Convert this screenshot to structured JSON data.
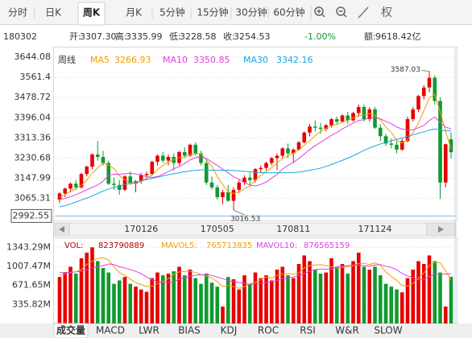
{
  "toolbar": {
    "tabs": [
      {
        "label": "分时",
        "selected": false
      },
      {
        "label": "日K",
        "selected": false
      },
      {
        "label": "周K",
        "selected": true
      },
      {
        "label": "月K",
        "selected": false
      },
      {
        "label": "5分钟",
        "selected": false
      },
      {
        "label": "15分钟",
        "selected": false
      },
      {
        "label": "30分钟",
        "selected": false
      },
      {
        "label": "60分钟",
        "selected": false
      }
    ],
    "adjust": "权"
  },
  "quote": {
    "date": "180302",
    "fields": [
      {
        "label": "开:",
        "value": "3307.30"
      },
      {
        "label": "高:",
        "value": "3335.99"
      },
      {
        "label": "低:",
        "value": "3228.58"
      },
      {
        "label": "收:",
        "value": "3254.53"
      }
    ],
    "change": "-1.00%",
    "amount_label": "额:",
    "amount": "9618.42亿"
  },
  "chart_data": [
    {
      "type": "candlestick",
      "period_label": "周线",
      "categories": [
        null,
        null,
        null,
        null,
        null,
        null,
        null,
        null,
        null,
        null,
        null,
        null,
        null,
        null,
        null,
        "170126",
        null,
        null,
        null,
        null,
        null,
        null,
        null,
        null,
        null,
        null,
        null,
        null,
        null,
        "170505",
        null,
        null,
        null,
        null,
        null,
        null,
        null,
        null,
        null,
        null,
        null,
        null,
        null,
        "170811",
        null,
        null,
        null,
        null,
        null,
        null,
        null,
        null,
        null,
        null,
        null,
        null,
        null,
        null,
        "171124",
        null,
        null,
        null,
        null,
        null,
        null,
        null,
        null,
        null,
        null,
        null,
        null,
        null,
        null
      ],
      "open": [
        3060,
        3085,
        3105,
        3125,
        3110,
        3165,
        3195,
        3245,
        3235,
        3210,
        3125,
        3120,
        3100,
        3155,
        3125,
        3135,
        3160,
        3165,
        3215,
        3240,
        3220,
        3235,
        3210,
        3255,
        3240,
        3285,
        3250,
        3210,
        3130,
        3110,
        3070,
        3090,
        3055,
        3100,
        3130,
        3150,
        3140,
        3185,
        3190,
        3210,
        3230,
        3240,
        3270,
        3250,
        3265,
        3295,
        3335,
        3360,
        3355,
        3350,
        3365,
        3390,
        3380,
        3405,
        3385,
        3415,
        3440,
        3390,
        3430,
        3355,
        3320,
        3290,
        3285,
        3265,
        3300,
        3390,
        3430,
        3485,
        3520,
        3560,
        3465,
        3130,
        3307.3
      ],
      "high": [
        3090,
        3110,
        3130,
        3140,
        3170,
        3200,
        3250,
        3300,
        3260,
        3220,
        3150,
        3140,
        3160,
        3175,
        3140,
        3170,
        3175,
        3220,
        3245,
        3255,
        3245,
        3250,
        3260,
        3275,
        3290,
        3295,
        3260,
        3220,
        3155,
        3120,
        3100,
        3120,
        3110,
        3140,
        3160,
        3170,
        3190,
        3200,
        3215,
        3235,
        3250,
        3275,
        3290,
        3270,
        3300,
        3340,
        3370,
        3385,
        3375,
        3370,
        3395,
        3400,
        3410,
        3420,
        3420,
        3450,
        3450,
        3440,
        3440,
        3370,
        3330,
        3310,
        3300,
        3310,
        3400,
        3440,
        3490,
        3530,
        3587.03,
        3570,
        3480,
        3290,
        3335.99
      ],
      "low": [
        3045,
        3070,
        3090,
        3100,
        3105,
        3155,
        3185,
        3220,
        3200,
        3120,
        3100,
        3080,
        3095,
        3120,
        3090,
        3125,
        3140,
        3160,
        3200,
        3210,
        3200,
        3180,
        3200,
        3230,
        3235,
        3240,
        3200,
        3120,
        3100,
        3060,
        3040,
        3050,
        3016.53,
        3090,
        3120,
        3120,
        3130,
        3170,
        3180,
        3200,
        3180,
        3230,
        3230,
        3210,
        3260,
        3290,
        3320,
        3340,
        3330,
        3340,
        3355,
        3370,
        3375,
        3370,
        3380,
        3400,
        3380,
        3380,
        3350,
        3300,
        3280,
        3270,
        3250,
        3260,
        3295,
        3380,
        3420,
        3470,
        3500,
        3450,
        3062,
        3110,
        3228.58
      ],
      "close": [
        3085,
        3105,
        3125,
        3110,
        3165,
        3195,
        3245,
        3235,
        3210,
        3125,
        3120,
        3100,
        3155,
        3125,
        3135,
        3160,
        3165,
        3215,
        3240,
        3220,
        3235,
        3210,
        3255,
        3240,
        3285,
        3250,
        3210,
        3130,
        3110,
        3070,
        3090,
        3055,
        3100,
        3130,
        3150,
        3140,
        3185,
        3190,
        3210,
        3230,
        3240,
        3270,
        3250,
        3265,
        3295,
        3335,
        3360,
        3355,
        3350,
        3365,
        3390,
        3380,
        3405,
        3385,
        3415,
        3440,
        3390,
        3430,
        3355,
        3320,
        3290,
        3285,
        3265,
        3300,
        3390,
        3430,
        3485,
        3520,
        3560,
        3465,
        3130,
        3287,
        3254.53
      ],
      "up_color": "#e60000",
      "down_color": "#109a2e",
      "series": [
        {
          "name": "MA5",
          "color": "#f0a000",
          "values": [
            3070,
            3080,
            3095,
            3105,
            3118,
            3140,
            3168,
            3190,
            3210,
            3202,
            3187,
            3158,
            3142,
            3125,
            3127,
            3135,
            3148,
            3160,
            3183,
            3200,
            3215,
            3224,
            3232,
            3232,
            3245,
            3248,
            3248,
            3223,
            3197,
            3154,
            3122,
            3091,
            3085,
            3089,
            3105,
            3115,
            3141,
            3159,
            3175,
            3191,
            3211,
            3228,
            3240,
            3251,
            3264,
            3283,
            3301,
            3322,
            3339,
            3353,
            3364,
            3368,
            3378,
            3385,
            3395,
            3405,
            3407,
            3412,
            3406,
            3387,
            3357,
            3336,
            3303,
            3292,
            3306,
            3334,
            3374,
            3425,
            3477,
            3492,
            3420,
            3340,
            3266.93
          ]
        },
        {
          "name": "MA10",
          "color": "#e040e0",
          "values": [
            3060,
            3065,
            3072,
            3080,
            3090,
            3100,
            3110,
            3120,
            3135,
            3160,
            3164,
            3163,
            3166,
            3168,
            3165,
            3161,
            3153,
            3151,
            3154,
            3164,
            3175,
            3186,
            3196,
            3208,
            3223,
            3232,
            3236,
            3228,
            3215,
            3200,
            3185,
            3170,
            3154,
            3143,
            3130,
            3119,
            3116,
            3122,
            3132,
            3148,
            3163,
            3185,
            3200,
            3213,
            3228,
            3247,
            3265,
            3281,
            3295,
            3309,
            3324,
            3335,
            3350,
            3362,
            3374,
            3385,
            3388,
            3395,
            3396,
            3391,
            3381,
            3372,
            3358,
            3349,
            3347,
            3346,
            3355,
            3364,
            3385,
            3399,
            3377,
            3357,
            3350.85
          ]
        },
        {
          "name": "MA30",
          "color": "#1aa6e0",
          "values": [
            3030,
            3035,
            3042,
            3050,
            3058,
            3066,
            3075,
            3085,
            3095,
            3103,
            3110,
            3116,
            3122,
            3127,
            3132,
            3137,
            3142,
            3147,
            3152,
            3157,
            3162,
            3166,
            3170,
            3174,
            3178,
            3180,
            3182,
            3182,
            3181,
            3180,
            3181,
            3180,
            3179,
            3178,
            3176,
            3174,
            3172,
            3171,
            3170,
            3170,
            3170,
            3170,
            3170,
            3171,
            3173,
            3176,
            3180,
            3184,
            3189,
            3196,
            3204,
            3212,
            3221,
            3230,
            3240,
            3251,
            3262,
            3272,
            3280,
            3288,
            3295,
            3301,
            3307,
            3313,
            3320,
            3326,
            3332,
            3338,
            3345,
            3350,
            3345,
            3343,
            3342.16
          ]
        }
      ],
      "ylim": [
        2974,
        3681
      ],
      "yticks": [
        3644.08,
        3561.4,
        3478.72,
        3396.04,
        3313.36,
        3230.68,
        3147.99,
        3065.31
      ],
      "cursor_price": 2992.55,
      "grid": true
    },
    {
      "type": "bar",
      "series": [
        {
          "name": "VOL:",
          "color": "#b00000",
          "values": [
            820000000.0,
            900000000.0,
            1000000000.0,
            880000000.0,
            1150000000.0,
            1250000000.0,
            1343000000.0,
            1100000000.0,
            980000000.0,
            900000000.0,
            700000000.0,
            760000000.0,
            820000000.0,
            700000000.0,
            650000000.0,
            600000000.0,
            560000000.0,
            800000000.0,
            900000000.0,
            850000000.0,
            880000000.0,
            920000000.0,
            1000000000.0,
            850000000.0,
            950000000.0,
            800000000.0,
            700000000.0,
            880000000.0,
            720000000.0,
            650000000.0,
            300000000.0,
            820000000.0,
            780000000.0,
            600000000.0,
            850000000.0,
            700000000.0,
            900000000.0,
            800000000.0,
            850000000.0,
            760000000.0,
            950000000.0,
            1000000000.0,
            850000000.0,
            800000000.0,
            1050000000.0,
            1200000000.0,
            1100000000.0,
            950000000.0,
            880000000.0,
            900000000.0,
            1150000000.0,
            1000000000.0,
            1050000000.0,
            880000000.0,
            1100000000.0,
            1250000000.0,
            1000000000.0,
            950000000.0,
            1000000000.0,
            850000000.0,
            700000000.0,
            650000000.0,
            600000000.0,
            550000000.0,
            800000000.0,
            950000000.0,
            1100000000.0,
            1050000000.0,
            1200000000.0,
            1100000000.0,
            900000000.0,
            300000000.0,
            823790889
          ]
        },
        {
          "name": "MAVOL5:",
          "color": "#f0a000",
          "values": [
            850000000.0,
            870000000.0,
            900000000.0,
            910000000.0,
            950000000.0,
            1040000000.0,
            1100000000.0,
            1150000000.0,
            1160000000.0,
            1120000000.0,
            1000000000.0,
            900000000.0,
            850000000.0,
            780000000.0,
            720000000.0,
            690000000.0,
            650000000.0,
            660000000.0,
            700000000.0,
            740000000.0,
            790000000.0,
            870000000.0,
            910000000.0,
            920000000.0,
            920000000.0,
            900000000.0,
            860000000.0,
            840000000.0,
            800000000.0,
            740000000.0,
            650000000.0,
            670000000.0,
            650000000.0,
            620000000.0,
            650000000.0,
            700000000.0,
            730000000.0,
            770000000.0,
            820000000.0,
            800000000.0,
            850000000.0,
            870000000.0,
            880000000.0,
            870000000.0,
            890000000.0,
            980000000.0,
            1020000000.0,
            1030000000.0,
            1040000000.0,
            1020000000.0,
            1000000000.0,
            980000000.0,
            990000000.0,
            1000000000.0,
            1020000000.0,
            1060000000.0,
            1060000000.0,
            1040000000.0,
            1070000000.0,
            1030000000.0,
            910000000.0,
            830000000.0,
            760000000.0,
            670000000.0,
            660000000.0,
            710000000.0,
            800000000.0,
            890000000.0,
            1020000000.0,
            1080000000.0,
            1070000000.0,
            930000000.0,
            765713835
          ]
        },
        {
          "name": "MAVOL10:",
          "color": "#e040e0",
          "values": [
            900000000.0,
            900000000.0,
            905000000.0,
            910000000.0,
            920000000.0,
            950000000.0,
            980000000.0,
            1000000000.0,
            1020000000.0,
            1050000000.0,
            1040000000.0,
            1000000000.0,
            980000000.0,
            950000000.0,
            920000000.0,
            880000000.0,
            820000000.0,
            770000000.0,
            740000000.0,
            730000000.0,
            720000000.0,
            740000000.0,
            780000000.0,
            810000000.0,
            830000000.0,
            850000000.0,
            860000000.0,
            860000000.0,
            850000000.0,
            820000000.0,
            790000000.0,
            760000000.0,
            740000000.0,
            720000000.0,
            710000000.0,
            690000000.0,
            700000000.0,
            710000000.0,
            720000000.0,
            740000000.0,
            760000000.0,
            790000000.0,
            800000000.0,
            820000000.0,
            840000000.0,
            880000000.0,
            920000000.0,
            950000000.0,
            960000000.0,
            960000000.0,
            960000000.0,
            1000000000.0,
            1010000000.0,
            1020000000.0,
            1030000000.0,
            1030000000.0,
            1020000000.0,
            1010000000.0,
            1030000000.0,
            1040000000.0,
            1010000000.0,
            990000000.0,
            950000000.0,
            880000000.0,
            840000000.0,
            810000000.0,
            770000000.0,
            780000000.0,
            830000000.0,
            870000000.0,
            880000000.0,
            870000000.0,
            876565159
          ]
        }
      ],
      "ylim": [
        0,
        1504000000
      ],
      "yticks": [
        {
          "value": 1343290000,
          "label": "1343.29M"
        },
        {
          "value": 1007470000,
          "label": "1007.47M"
        },
        {
          "value": 671650000,
          "label": "671.65M"
        },
        {
          "value": 335820000,
          "label": "335.82M"
        }
      ],
      "grid": true
    }
  ],
  "indicator_tabs": [
    {
      "label": "成交量",
      "selected": true
    },
    {
      "label": "MACD",
      "selected": false
    },
    {
      "label": "LWR",
      "selected": false
    },
    {
      "label": "BIAS",
      "selected": false
    },
    {
      "label": "KDJ",
      "selected": false
    },
    {
      "label": "ROC",
      "selected": false
    },
    {
      "label": "RSI",
      "selected": false
    },
    {
      "label": "W&R",
      "selected": false
    },
    {
      "label": "SLOW",
      "selected": false
    }
  ]
}
